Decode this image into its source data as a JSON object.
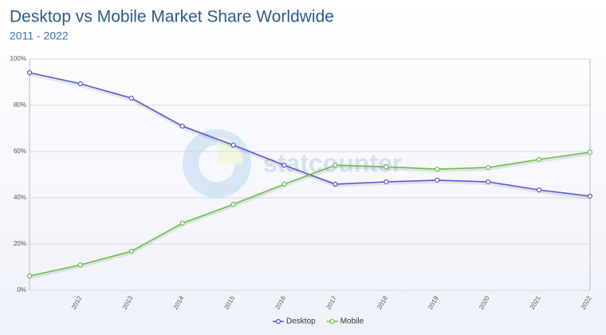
{
  "chart_data": {
    "type": "line",
    "title": "Desktop vs Mobile Market Share Worldwide",
    "subtitle": "2011 - 2022",
    "watermark": "statcounter",
    "categories": [
      null,
      "2012",
      "2013",
      "2014",
      "2015",
      "2016",
      "2017",
      "2018",
      "2019",
      "2020",
      "2021",
      "2022"
    ],
    "series": [
      {
        "name": "Desktop",
        "color": "#5558d0",
        "values": [
          94.1,
          89.3,
          83.1,
          71.0,
          62.8,
          54.1,
          45.9,
          46.9,
          47.6,
          46.9,
          43.4,
          40.7
        ]
      },
      {
        "name": "Mobile",
        "color": "#68bf45",
        "values": [
          6.2,
          11.0,
          16.9,
          29.0,
          37.2,
          45.9,
          54.1,
          53.4,
          52.4,
          53.1,
          56.6,
          59.7
        ]
      }
    ],
    "ylim": [
      0,
      100
    ],
    "yticks": [
      {
        "value": 0,
        "label": "0%"
      },
      {
        "value": 20,
        "label": "20%"
      },
      {
        "value": 40,
        "label": "40%"
      },
      {
        "value": 60,
        "label": "60%"
      },
      {
        "value": 80,
        "label": "80%"
      },
      {
        "value": 100,
        "label": "100%"
      }
    ],
    "grid": true,
    "legend": "bottom"
  }
}
